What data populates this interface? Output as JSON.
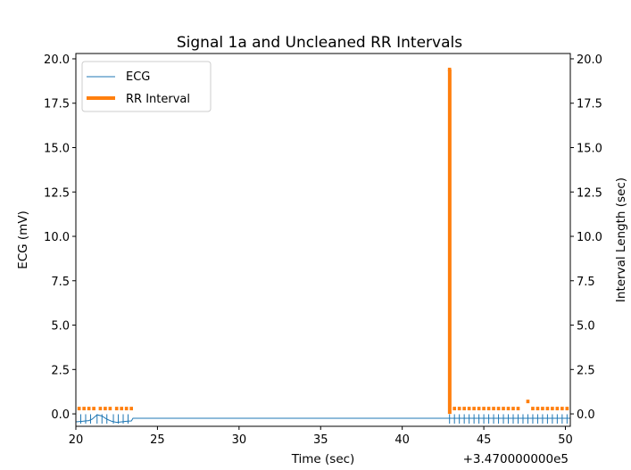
{
  "chart_data": {
    "type": "line",
    "title": "Signal 1a and Uncleaned RR Intervals",
    "xlabel": "Time (sec)",
    "x_offset_label": "+3.470000000e5",
    "ylabel_left": "ECG (mV)",
    "ylabel_right": "Interval Length (sec)",
    "xlim": [
      20,
      50.3
    ],
    "ylim": [
      -0.7,
      20.3
    ],
    "x_ticks": [
      {
        "value": 20,
        "label": "20"
      },
      {
        "value": 25,
        "label": "25"
      },
      {
        "value": 30,
        "label": "30"
      },
      {
        "value": 35,
        "label": "35"
      },
      {
        "value": 40,
        "label": "40"
      },
      {
        "value": 45,
        "label": "45"
      },
      {
        "value": 50,
        "label": "50"
      }
    ],
    "y_ticks": [
      {
        "value": 0,
        "label": "0.0"
      },
      {
        "value": 2.5,
        "label": "2.5"
      },
      {
        "value": 5,
        "label": "5.0"
      },
      {
        "value": 7.5,
        "label": "7.5"
      },
      {
        "value": 10,
        "label": "10.0"
      },
      {
        "value": 12.5,
        "label": "12.5"
      },
      {
        "value": 15,
        "label": "15.0"
      },
      {
        "value": 17.5,
        "label": "17.5"
      },
      {
        "value": 20,
        "label": "20.0"
      }
    ],
    "grid": false,
    "legend_position": "top-left",
    "series": [
      {
        "name": "ECG",
        "style": "thin-line",
        "color": "#1f77b4",
        "x": [
          20.0,
          20.4,
          20.8,
          21.0,
          21.3,
          21.6,
          21.9,
          22.2,
          22.5,
          22.8,
          23.1,
          23.4,
          23.5,
          42.7,
          50.3
        ],
        "y": [
          -0.45,
          -0.42,
          -0.38,
          -0.3,
          -0.05,
          -0.12,
          -0.3,
          -0.42,
          -0.48,
          -0.45,
          -0.42,
          -0.4,
          -0.25,
          -0.25,
          -0.25
        ],
        "spike_x": [
          20.3,
          20.6,
          20.9,
          21.3,
          21.6,
          21.9,
          22.3,
          22.6,
          22.9,
          23.2,
          42.9,
          43.2,
          43.5,
          43.8,
          44.1,
          44.4,
          44.7,
          45.0,
          45.3,
          45.6,
          45.9,
          46.2,
          46.5,
          46.8,
          47.1,
          47.4,
          47.7,
          48.0,
          48.3,
          48.6,
          48.9,
          49.2,
          49.5,
          49.8,
          50.1
        ]
      },
      {
        "name": "RR Interval",
        "style": "thick-steps",
        "color": "#ff7f0e",
        "x": [
          20.1,
          20.4,
          20.7,
          21.0,
          21.4,
          21.7,
          22.0,
          22.4,
          22.7,
          23.0,
          23.3,
          42.8,
          43.1,
          43.4,
          43.7,
          44.0,
          44.3,
          44.6,
          44.9,
          45.2,
          45.5,
          45.8,
          46.1,
          46.4,
          46.7,
          47.0,
          47.6,
          47.9,
          48.2,
          48.5,
          48.8,
          49.1,
          49.4,
          49.7,
          50.0
        ],
        "y": [
          0.3,
          0.3,
          0.3,
          0.3,
          0.3,
          0.3,
          0.3,
          0.3,
          0.3,
          0.3,
          0.3,
          19.4,
          0.3,
          0.3,
          0.3,
          0.3,
          0.3,
          0.3,
          0.3,
          0.3,
          0.3,
          0.3,
          0.3,
          0.3,
          0.3,
          0.3,
          0.7,
          0.3,
          0.3,
          0.3,
          0.3,
          0.3,
          0.3,
          0.3,
          0.3
        ],
        "segment_width": 0.2
      }
    ]
  }
}
